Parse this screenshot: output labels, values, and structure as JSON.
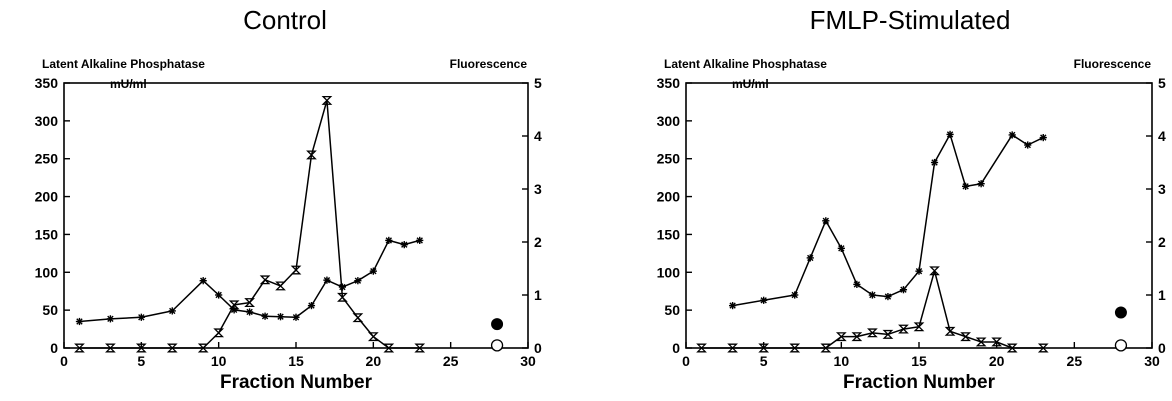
{
  "chart_data": [
    {
      "type": "line",
      "title": "Control",
      "xlabel": "Fraction Number",
      "ylabel": "Latent Alkaline Phosphatase",
      "ylabel_unit": "mU/ml",
      "y2label": "Fluorescence",
      "xlim": [
        0,
        30
      ],
      "ylim": [
        0,
        350
      ],
      "y2lim": [
        0,
        5
      ],
      "xticks": [
        "0",
        "5",
        "10",
        "15",
        "20",
        "25",
        "30"
      ],
      "yticks": [
        "0",
        "50",
        "100",
        "150",
        "200",
        "250",
        "300",
        "350"
      ],
      "y2ticks": [
        "0",
        "1",
        "2",
        "3",
        "4",
        "5"
      ],
      "grid": false,
      "series": [
        {
          "axis": "y2",
          "marker": "asterisk",
          "x": [
            1,
            3,
            5,
            7,
            9,
            10,
            11,
            12,
            13,
            14,
            15,
            16,
            17,
            18,
            19,
            20,
            21,
            22,
            23
          ],
          "y": [
            0.5,
            0.55,
            0.58,
            0.7,
            1.27,
            1.0,
            0.72,
            0.68,
            0.6,
            0.59,
            0.58,
            0.8,
            1.28,
            1.15,
            1.27,
            1.45,
            2.03,
            1.95,
            2.03
          ]
        },
        {
          "axis": "y",
          "marker": "hourglass",
          "x": [
            1,
            3,
            5,
            7,
            9,
            10,
            11,
            12,
            13,
            14,
            15,
            16,
            17,
            18,
            19,
            20,
            21,
            23
          ],
          "y": [
            0,
            0,
            0,
            0,
            0,
            20,
            57,
            60,
            90,
            82,
            103,
            255,
            327,
            67,
            40,
            15,
            0,
            0
          ]
        },
        {
          "axis": "y2",
          "marker": "filled-circle",
          "x": [
            28
          ],
          "y": [
            0.45
          ]
        },
        {
          "axis": "y2",
          "marker": "open-circle",
          "x": [
            28
          ],
          "y": [
            0.05
          ]
        }
      ]
    },
    {
      "type": "line",
      "title": "FMLP-Stimulated",
      "xlabel": "Fraction Number",
      "ylabel": "Latent Alkaline Phosphatase",
      "ylabel_unit": "mU/ml",
      "y2label": "Fluorescence",
      "xlim": [
        0,
        30
      ],
      "ylim": [
        0,
        350
      ],
      "y2lim": [
        0,
        5
      ],
      "xticks": [
        "0",
        "5",
        "10",
        "15",
        "20",
        "25",
        "30"
      ],
      "yticks": [
        "0",
        "50",
        "100",
        "150",
        "200",
        "250",
        "300",
        "350"
      ],
      "y2ticks": [
        "0",
        "1",
        "2",
        "3",
        "4",
        "5"
      ],
      "grid": false,
      "series": [
        {
          "axis": "y2",
          "marker": "asterisk",
          "x": [
            3,
            5,
            7,
            8,
            9,
            10,
            11,
            12,
            13,
            14,
            15,
            16,
            17,
            18,
            19,
            21,
            22,
            23
          ],
          "y": [
            0.8,
            0.9,
            1.0,
            1.7,
            2.4,
            1.88,
            1.2,
            1.0,
            0.97,
            1.1,
            1.45,
            3.5,
            4.03,
            3.05,
            3.1,
            4.02,
            3.83,
            3.97
          ]
        },
        {
          "axis": "y",
          "marker": "hourglass",
          "x": [
            1,
            3,
            5,
            7,
            9,
            10,
            11,
            12,
            13,
            14,
            15,
            16,
            17,
            18,
            19,
            20,
            21,
            23
          ],
          "y": [
            0,
            0,
            0,
            0,
            0,
            15,
            15,
            20,
            18,
            25,
            28,
            102,
            22,
            15,
            8,
            8,
            0,
            0
          ]
        },
        {
          "axis": "y2",
          "marker": "filled-circle",
          "x": [
            28
          ],
          "y": [
            0.67
          ]
        },
        {
          "axis": "y2",
          "marker": "open-circle",
          "x": [
            28
          ],
          "y": [
            0.05
          ]
        }
      ]
    }
  ]
}
